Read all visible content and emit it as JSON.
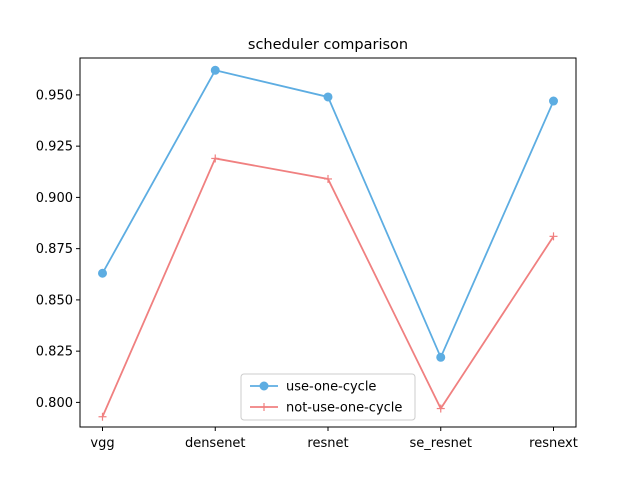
{
  "chart_data": {
    "type": "line",
    "title": "scheduler comparison",
    "xlabel": "",
    "ylabel": "",
    "categories": [
      "vgg",
      "densenet",
      "resnet",
      "se_resnet",
      "resnext"
    ],
    "ylim": [
      0.788,
      0.968
    ],
    "yticks": [
      "0.800",
      "0.825",
      "0.850",
      "0.875",
      "0.900",
      "0.925",
      "0.950"
    ],
    "grid": false,
    "legend_position": "lower center",
    "series": [
      {
        "name": "use-one-cycle",
        "color": "#5dade2",
        "marker": "circle",
        "values": [
          0.863,
          0.962,
          0.949,
          0.822,
          0.947
        ]
      },
      {
        "name": "not-use-one-cycle",
        "color": "#f08080",
        "marker": "plus",
        "values": [
          0.793,
          0.919,
          0.909,
          0.797,
          0.881
        ]
      }
    ]
  }
}
